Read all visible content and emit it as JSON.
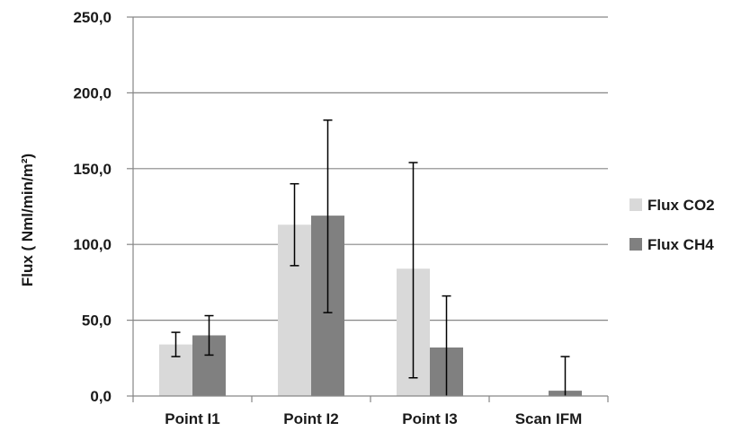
{
  "chart_data": {
    "type": "bar",
    "title": "",
    "xlabel": "",
    "ylabel": "Flux ( Nml/min/m²)",
    "ylim": [
      0,
      250
    ],
    "y_ticks": [
      "0,0",
      "50,0",
      "100,0",
      "150,0",
      "200,0",
      "250,0"
    ],
    "y_tick_values": [
      0,
      50,
      100,
      150,
      200,
      250
    ],
    "categories": [
      "Point I1",
      "Point I2",
      "Point I3",
      "Scan IFM"
    ],
    "grid": true,
    "legend_position": "right",
    "series": [
      {
        "name": "Flux CO2",
        "color": "#d9d9d9",
        "values": [
          34,
          113,
          84,
          0
        ],
        "error_low": [
          26,
          86,
          12,
          null
        ],
        "error_high": [
          42,
          140,
          154,
          null
        ]
      },
      {
        "name": "Flux CH4",
        "color": "#808080",
        "values": [
          40,
          119,
          32,
          3.5
        ],
        "error_low": [
          27,
          55,
          0,
          0
        ],
        "error_high": [
          53,
          182,
          66,
          26
        ]
      }
    ]
  }
}
